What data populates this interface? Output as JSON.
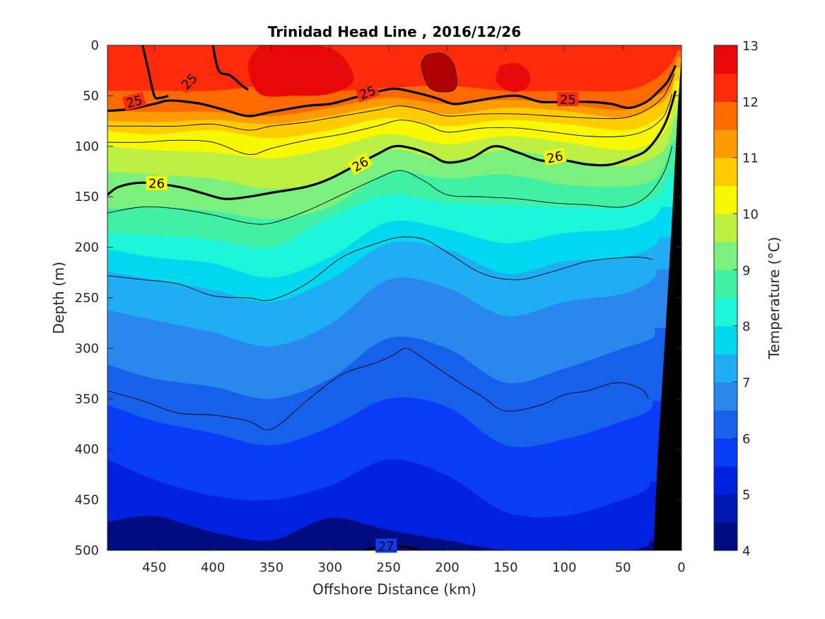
{
  "chart_data": {
    "type": "heatmap",
    "title": "Trinidad Head Line , 2016/12/26",
    "xlabel": "Offshore Distance (km)",
    "ylabel": "Depth (m)",
    "xlim": [
      490,
      0
    ],
    "ylim": [
      0,
      500
    ],
    "x_reversed": true,
    "y_reversed": true,
    "x_ticks": [
      450,
      400,
      350,
      300,
      250,
      200,
      150,
      100,
      50,
      0
    ],
    "y_ticks": [
      0,
      50,
      100,
      150,
      200,
      250,
      300,
      350,
      400,
      450,
      500
    ],
    "colorbar": {
      "label": "Temperature (°C)",
      "range": [
        4,
        13
      ],
      "ticks": [
        4,
        5,
        6,
        7,
        8,
        9,
        10,
        11,
        12,
        13
      ],
      "levels": [
        4,
        4.5,
        5,
        5.5,
        6,
        6.5,
        7,
        7.5,
        8,
        8.5,
        9,
        9.5,
        10,
        10.5,
        11,
        11.5,
        12,
        12.5,
        13
      ],
      "colors": [
        "#000c80",
        "#0016b0",
        "#0022e0",
        "#0a3cf8",
        "#1760ec",
        "#2a88ec",
        "#1faef4",
        "#00d8f0",
        "#1ef4d8",
        "#40f0a4",
        "#7cf07c",
        "#bcf043",
        "#f8f800",
        "#ffcc00",
        "#ff9a00",
        "#ff6a00",
        "#ff2a0a",
        "#e80808",
        "#b00000"
      ]
    },
    "temperature_isotherms": [
      {
        "level": 12,
        "x": [
          490,
          450,
          400,
          350,
          300,
          250,
          200,
          150,
          100,
          50,
          25,
          10,
          3
        ],
        "depth": [
          45,
          45,
          45,
          40,
          45,
          42,
          40,
          45,
          45,
          45,
          35,
          20,
          5
        ]
      },
      {
        "level": 11.5,
        "x": [
          490,
          450,
          400,
          350,
          300,
          250,
          200,
          150,
          100,
          50,
          25,
          10,
          4
        ],
        "depth": [
          65,
          66,
          66,
          70,
          62,
          52,
          58,
          54,
          58,
          64,
          52,
          40,
          12
        ]
      },
      {
        "level": 11,
        "x": [
          490,
          450,
          400,
          350,
          300,
          250,
          200,
          150,
          100,
          50,
          25,
          10,
          5
        ],
        "depth": [
          75,
          76,
          74,
          78,
          70,
          60,
          68,
          62,
          65,
          72,
          62,
          48,
          22
        ]
      },
      {
        "level": 10.5,
        "x": [
          490,
          450,
          400,
          350,
          300,
          250,
          200,
          150,
          100,
          50,
          25,
          10,
          6
        ],
        "depth": [
          85,
          88,
          84,
          92,
          84,
          72,
          80,
          74,
          78,
          84,
          76,
          60,
          35
        ]
      },
      {
        "level": 10,
        "x": [
          490,
          450,
          400,
          350,
          300,
          250,
          200,
          150,
          100,
          50,
          25,
          12,
          6
        ],
        "depth": [
          100,
          104,
          106,
          112,
          102,
          88,
          98,
          90,
          96,
          104,
          96,
          80,
          55
        ]
      },
      {
        "level": 9.5,
        "x": [
          490,
          450,
          400,
          350,
          300,
          250,
          200,
          150,
          100,
          50,
          25,
          12,
          6
        ],
        "depth": [
          125,
          128,
          132,
          142,
          132,
          104,
          114,
          104,
          112,
          120,
          112,
          98,
          70
        ]
      },
      {
        "level": 9,
        "x": [
          490,
          450,
          400,
          350,
          300,
          250,
          200,
          150,
          100,
          50,
          25,
          15,
          8
        ],
        "depth": [
          162,
          160,
          164,
          172,
          160,
          126,
          132,
          128,
          138,
          140,
          134,
          120,
          95
        ]
      },
      {
        "level": 8.5,
        "x": [
          490,
          450,
          400,
          350,
          300,
          250,
          200,
          150,
          100,
          50,
          25,
          15,
          10
        ],
        "depth": [
          185,
          188,
          192,
          200,
          170,
          148,
          156,
          158,
          160,
          160,
          152,
          140,
          125
        ]
      },
      {
        "level": 8,
        "x": [
          490,
          450,
          400,
          350,
          300,
          250,
          200,
          150,
          100,
          50,
          25,
          17
        ],
        "depth": [
          202,
          210,
          216,
          230,
          210,
          175,
          182,
          196,
          186,
          182,
          172,
          160
        ]
      },
      {
        "level": 7.5,
        "x": [
          490,
          450,
          400,
          350,
          300,
          250,
          200,
          150,
          100,
          50,
          25,
          19
        ],
        "depth": [
          224,
          232,
          242,
          254,
          232,
          196,
          202,
          226,
          214,
          210,
          200,
          190
        ]
      },
      {
        "level": 7,
        "x": [
          490,
          450,
          400,
          350,
          300,
          250,
          200,
          150,
          100,
          50,
          25,
          21
        ],
        "depth": [
          262,
          272,
          284,
          298,
          276,
          232,
          240,
          268,
          254,
          246,
          232,
          222
        ]
      },
      {
        "level": 6.5,
        "x": [
          490,
          450,
          400,
          350,
          300,
          250,
          200,
          150,
          100,
          50,
          25,
          23
        ],
        "depth": [
          316,
          330,
          338,
          350,
          330,
          290,
          300,
          334,
          320,
          300,
          290,
          280
        ]
      },
      {
        "level": 6,
        "x": [
          490,
          450,
          400,
          350,
          300,
          250,
          200,
          150,
          100,
          50,
          28,
          24
        ],
        "depth": [
          356,
          372,
          384,
          396,
          378,
          350,
          358,
          396,
          390,
          372,
          362,
          352
        ]
      },
      {
        "level": 5.5,
        "x": [
          490,
          450,
          400,
          350,
          300,
          250,
          200,
          150,
          100,
          50,
          30,
          26
        ],
        "depth": [
          410,
          430,
          446,
          450,
          436,
          410,
          426,
          462,
          466,
          450,
          440,
          432
        ]
      },
      {
        "level": 5,
        "x": [
          490,
          450,
          400,
          350,
          300,
          250,
          200,
          150,
          100,
          50,
          30,
          27
        ],
        "depth": [
          472,
          466,
          482,
          490,
          468,
          480,
          490,
          500,
          500,
          500,
          496,
          490
        ]
      }
    ],
    "warm_patches": [
      {
        "level": 12.5,
        "x": [
          360,
          340,
          310,
          290,
          280,
          300,
          330,
          360,
          370
        ],
        "depth": [
          0,
          0,
          0,
          10,
          35,
          48,
          50,
          48,
          20
        ]
      },
      {
        "level": 13,
        "x": [
          218,
          205,
          195,
          192,
          200,
          215,
          222
        ],
        "depth": [
          10,
          8,
          18,
          40,
          46,
          42,
          20
        ]
      },
      {
        "level": 12.5,
        "x": [
          155,
          140,
          130,
          132,
          145,
          158
        ],
        "depth": [
          20,
          18,
          28,
          42,
          46,
          36
        ]
      }
    ],
    "sigma_contours": [
      {
        "level": 25,
        "x": [
          490,
          470,
          450,
          440,
          430,
          410,
          390,
          370,
          350,
          320,
          300,
          280,
          260,
          245,
          230,
          210,
          195,
          180,
          160,
          140,
          120,
          100,
          80,
          60,
          45,
          30,
          20,
          12,
          5
        ],
        "depth": [
          65,
          63,
          58,
          55,
          55,
          58,
          64,
          70,
          66,
          60,
          58,
          52,
          46,
          43,
          46,
          52,
          58,
          56,
          52,
          50,
          56,
          56,
          56,
          58,
          62,
          56,
          46,
          36,
          20
        ]
      },
      {
        "level": 25,
        "x": [
          460,
          455,
          450,
          445,
          438
        ],
        "depth": [
          0,
          25,
          50,
          52,
          50
        ]
      },
      {
        "level": 25,
        "x": [
          400,
          395,
          385,
          375,
          370
        ],
        "depth": [
          0,
          25,
          30,
          40,
          44
        ]
      },
      {
        "level": 26,
        "x": [
          490,
          480,
          460,
          430,
          410,
          390,
          370,
          350,
          320,
          300,
          280,
          260,
          245,
          230,
          215,
          200,
          180,
          160,
          140,
          120,
          100,
          80,
          60,
          40,
          30,
          20,
          12,
          5
        ],
        "depth": [
          148,
          140,
          136,
          140,
          146,
          152,
          150,
          146,
          140,
          132,
          120,
          108,
          100,
          102,
          108,
          116,
          112,
          100,
          106,
          114,
          114,
          118,
          118,
          110,
          104,
          90,
          72,
          45
        ]
      },
      {
        "level": 27,
        "x": [
          275,
          265,
          250,
          240,
          230,
          220
        ],
        "depth": [
          502,
          498,
          496,
          496,
          498,
          502
        ]
      }
    ],
    "thin_contours": [
      {
        "x": [
          490,
          460,
          430,
          400,
          370,
          350,
          320,
          290,
          260,
          240,
          220,
          200,
          170,
          140,
          110,
          80,
          50,
          30,
          15,
          6
        ],
        "depth": [
          80,
          80,
          80,
          78,
          84,
          80,
          76,
          70,
          64,
          60,
          64,
          70,
          68,
          68,
          70,
          72,
          72,
          64,
          50,
          28
        ]
      },
      {
        "x": [
          490,
          460,
          430,
          400,
          370,
          350,
          320,
          290,
          260,
          240,
          220,
          200,
          170,
          140,
          110,
          80,
          50,
          30,
          15,
          8
        ],
        "depth": [
          96,
          96,
          94,
          96,
          108,
          102,
          94,
          88,
          80,
          74,
          78,
          86,
          82,
          82,
          86,
          90,
          90,
          84,
          70,
          48
        ]
      },
      {
        "x": [
          490,
          460,
          430,
          400,
          370,
          350,
          320,
          290,
          260,
          240,
          220,
          200,
          170,
          140,
          110,
          80,
          50,
          30,
          15,
          8
        ],
        "depth": [
          166,
          160,
          162,
          168,
          176,
          176,
          164,
          148,
          132,
          124,
          134,
          148,
          150,
          152,
          156,
          158,
          160,
          150,
          126,
          100
        ]
      },
      {
        "x": [
          490,
          460,
          430,
          400,
          370,
          350,
          320,
          290,
          260,
          240,
          220,
          200,
          170,
          140,
          110,
          80,
          50,
          33,
          25
        ],
        "depth": [
          228,
          232,
          236,
          248,
          250,
          252,
          236,
          210,
          196,
          190,
          192,
          205,
          226,
          232,
          224,
          214,
          210,
          210,
          212
        ]
      },
      {
        "x": [
          490,
          460,
          430,
          400,
          370,
          350,
          320,
          290,
          260,
          245,
          235,
          220,
          200,
          170,
          150,
          120,
          100,
          80,
          55,
          35,
          28
        ],
        "depth": [
          342,
          352,
          364,
          366,
          372,
          380,
          352,
          326,
          314,
          306,
          300,
          310,
          326,
          348,
          362,
          356,
          346,
          342,
          334,
          340,
          350
        ]
      }
    ],
    "contour_labels": [
      {
        "text": "25",
        "x": 467,
        "depth": 56,
        "angle": -15
      },
      {
        "text": "25",
        "x": 420,
        "depth": 36,
        "angle": -45
      },
      {
        "text": "25",
        "x": 268,
        "depth": 47,
        "angle": -20
      },
      {
        "text": "25",
        "x": 97,
        "depth": 54,
        "angle": 0
      },
      {
        "text": "26",
        "x": 448,
        "depth": 137,
        "angle": 0
      },
      {
        "text": "26",
        "x": 274,
        "depth": 118,
        "angle": -30
      },
      {
        "text": "26",
        "x": 108,
        "depth": 111,
        "angle": -12
      },
      {
        "text": "27",
        "x": 252,
        "depth": 496,
        "angle": 0
      }
    ],
    "bathymetry": {
      "x": [
        24,
        20,
        14,
        8,
        3,
        0,
        0
      ],
      "depth": [
        500,
        400,
        290,
        170,
        60,
        10,
        500
      ]
    }
  }
}
